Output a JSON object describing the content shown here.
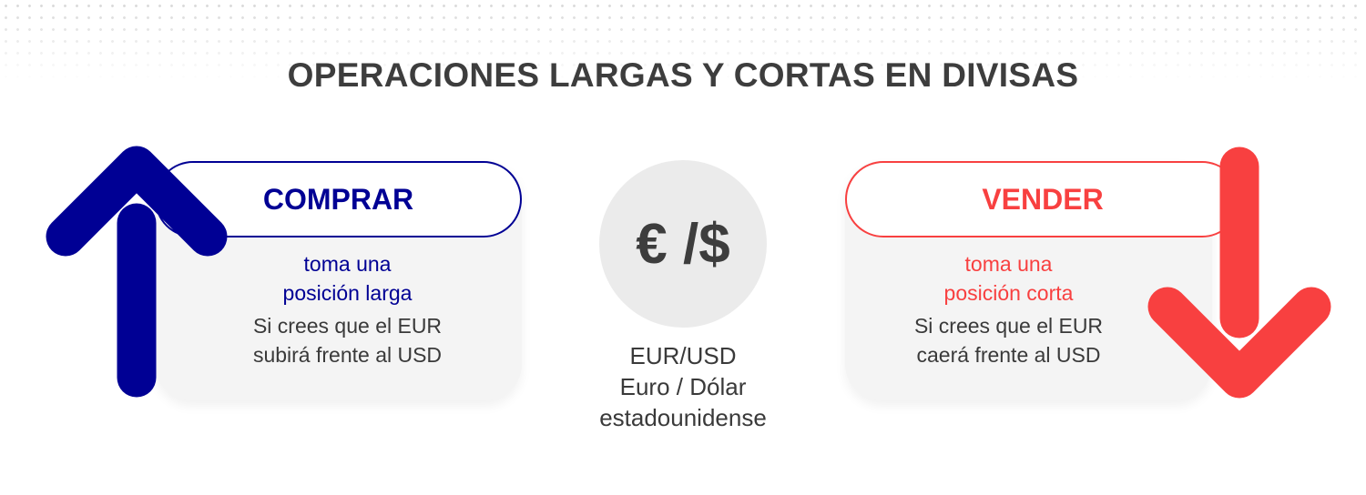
{
  "title": "OPERACIONES LARGAS Y CORTAS EN DIVISAS",
  "colors": {
    "buy": "#000094",
    "sell": "#f84040",
    "text": "#3d3d3d",
    "card": "#f4f4f4"
  },
  "buy": {
    "label": "COMPRAR",
    "line1": "toma una",
    "line2": "posición larga",
    "desc1": "Si crees que el EUR",
    "desc2": "subirá frente al USD",
    "icon": "arrow-up-icon"
  },
  "center": {
    "symbol": "€ /$",
    "pair": "EUR/USD",
    "name1": "Euro / Dólar",
    "name2": "estadounidense"
  },
  "sell": {
    "label": "VENDER",
    "line1": "toma una",
    "line2": "posición corta",
    "desc1": "Si crees que el EUR",
    "desc2": "caerá frente al USD",
    "icon": "arrow-down-icon"
  }
}
